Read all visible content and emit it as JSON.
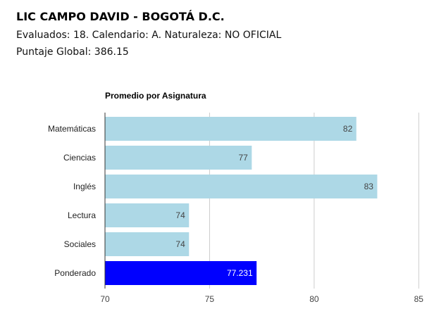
{
  "header": {
    "school": "LIC CAMPO DAVID - BOGOTÁ D.C.",
    "info_line": "Evaluados: 18. Calendario: A. Naturaleza: NO OFICIAL",
    "score_line": "Puntaje Global: 386.15"
  },
  "colors": {
    "bar": "#add8e6",
    "highlight": "#0000ff",
    "label_dark": "#444444",
    "label_light": "#ffffff",
    "grid": "#cccccc"
  },
  "chart_data": {
    "type": "bar",
    "orientation": "horizontal",
    "title": "Promedio por Asignatura",
    "categories": [
      "Matemáticas",
      "Ciencias",
      "Inglés",
      "Lectura",
      "Sociales",
      "Ponderado"
    ],
    "values": [
      82,
      77,
      83,
      74,
      74,
      77.231
    ],
    "value_labels": [
      "82",
      "77",
      "83",
      "74",
      "74",
      "77.231"
    ],
    "highlight_category": "Ponderado",
    "xlim": [
      70,
      86
    ],
    "xticks": [
      70,
      75,
      80,
      85
    ],
    "grid": true
  }
}
